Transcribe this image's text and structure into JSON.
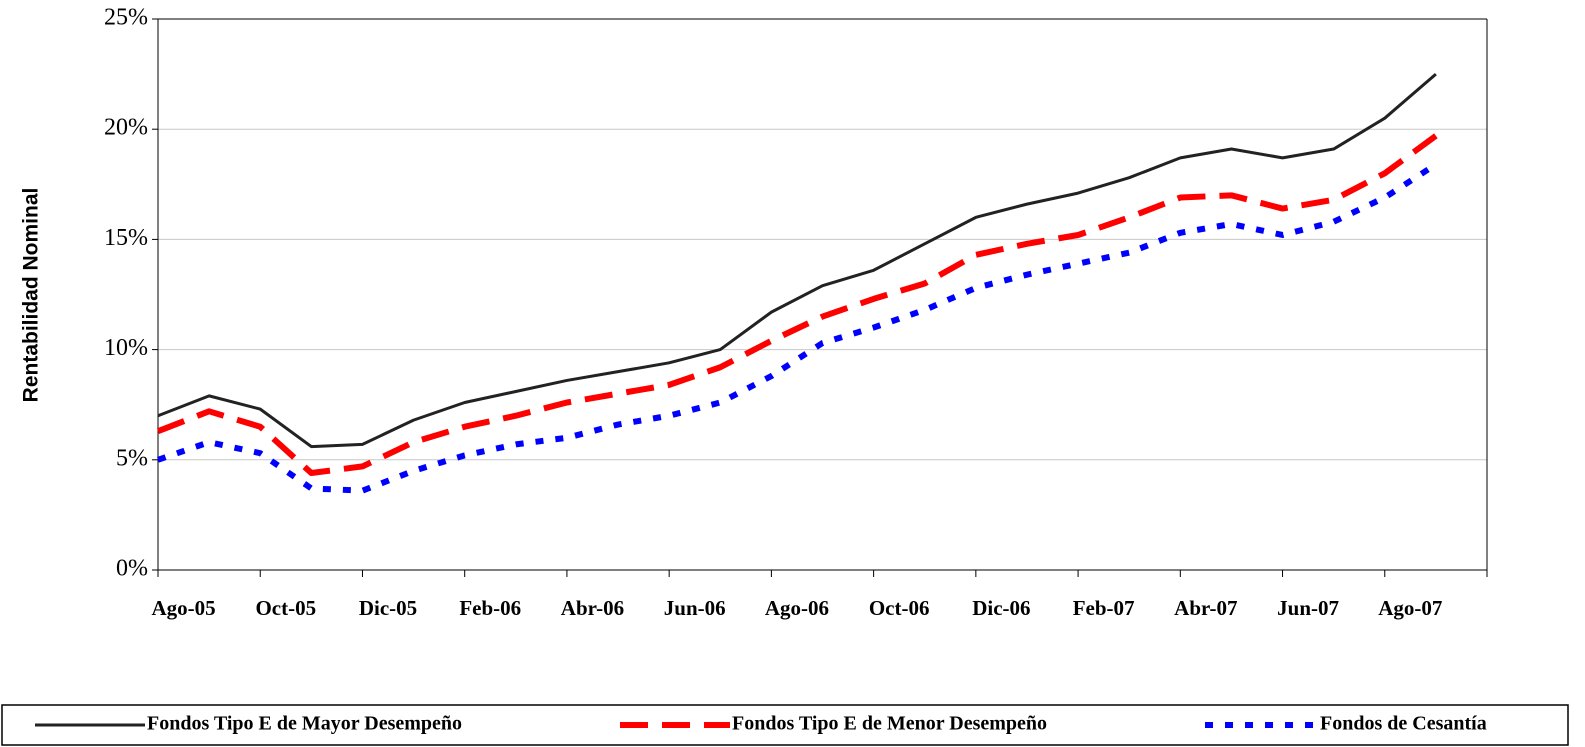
{
  "chart_data": {
    "type": "line",
    "y_label": "Rentabilidad Nominal",
    "categories": [
      "Ago-05",
      null,
      "Oct-05",
      null,
      "Dic-05",
      null,
      "Feb-06",
      null,
      "Abr-06",
      null,
      "Jun-06",
      null,
      "Ago-06",
      null,
      "Oct-06",
      null,
      "Dic-06",
      null,
      "Feb-07",
      null,
      "Abr-07",
      null,
      "Jun-07",
      null,
      "Ago-07",
      null
    ],
    "series": [
      {
        "name": "Fondos Tipo E de Mayor  Desempeño",
        "color": "#222222",
        "line_style": "solid",
        "values": [
          7.0,
          7.9,
          7.3,
          5.6,
          5.7,
          6.8,
          7.6,
          8.1,
          8.6,
          9.0,
          9.4,
          10.0,
          11.7,
          12.9,
          13.6,
          14.8,
          16.0,
          16.6,
          17.1,
          17.8,
          18.7,
          19.1,
          18.7,
          19.1,
          20.5,
          22.5
        ]
      },
      {
        "name": "Fondos Tipo E de Menor  Desempeño",
        "color": "#ff0000",
        "line_style": "dashed",
        "values": [
          6.3,
          7.2,
          6.5,
          4.4,
          4.7,
          5.8,
          6.5,
          7.0,
          7.6,
          8.0,
          8.4,
          9.2,
          10.4,
          11.5,
          12.3,
          13.0,
          14.3,
          14.8,
          15.2,
          16.0,
          16.9,
          17.0,
          16.4,
          16.8,
          18.0,
          19.7
        ]
      },
      {
        "name": "Fondos de Cesantía",
        "color": "#0000ff",
        "line_style": "dotted",
        "values": [
          5.0,
          5.8,
          5.3,
          3.7,
          3.6,
          4.5,
          5.2,
          5.7,
          6.0,
          6.6,
          7.0,
          7.6,
          8.8,
          10.3,
          11.0,
          11.8,
          12.8,
          13.4,
          13.9,
          14.4,
          15.3,
          15.7,
          15.2,
          15.8,
          16.9,
          18.4
        ]
      }
    ],
    "ylim": [
      0,
      25
    ],
    "yticks": [
      {
        "value": 0,
        "label": "0%"
      },
      {
        "value": 5,
        "label": "5%"
      },
      {
        "value": 10,
        "label": "10%"
      },
      {
        "value": 15,
        "label": "15%"
      },
      {
        "value": 20,
        "label": "20%"
      },
      {
        "value": 25,
        "label": "25%"
      }
    ],
    "grid": true,
    "legend": "bottom"
  }
}
